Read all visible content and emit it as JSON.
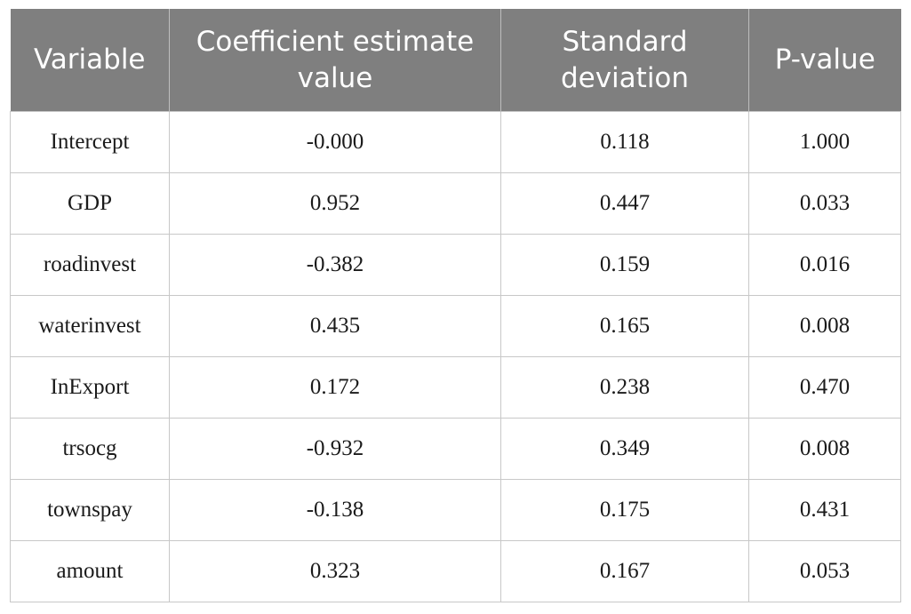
{
  "table": {
    "headers": [
      "Variable",
      "Coefficient estimate value",
      "Standard deviation",
      "P-value"
    ],
    "rows": [
      [
        "Intercept",
        "-0.000",
        "0.118",
        "1.000"
      ],
      [
        "GDP",
        "0.952",
        "0.447",
        "0.033"
      ],
      [
        "roadinvest",
        "-0.382",
        "0.159",
        "0.016"
      ],
      [
        "waterinvest",
        "0.435",
        "0.165",
        "0.008"
      ],
      [
        "InExport",
        "0.172",
        "0.238",
        "0.470"
      ],
      [
        "trsocg",
        "-0.932",
        "0.349",
        "0.008"
      ],
      [
        "townspay",
        "-0.138",
        "0.175",
        "0.431"
      ],
      [
        "amount",
        "0.323",
        "0.167",
        "0.053"
      ]
    ]
  }
}
